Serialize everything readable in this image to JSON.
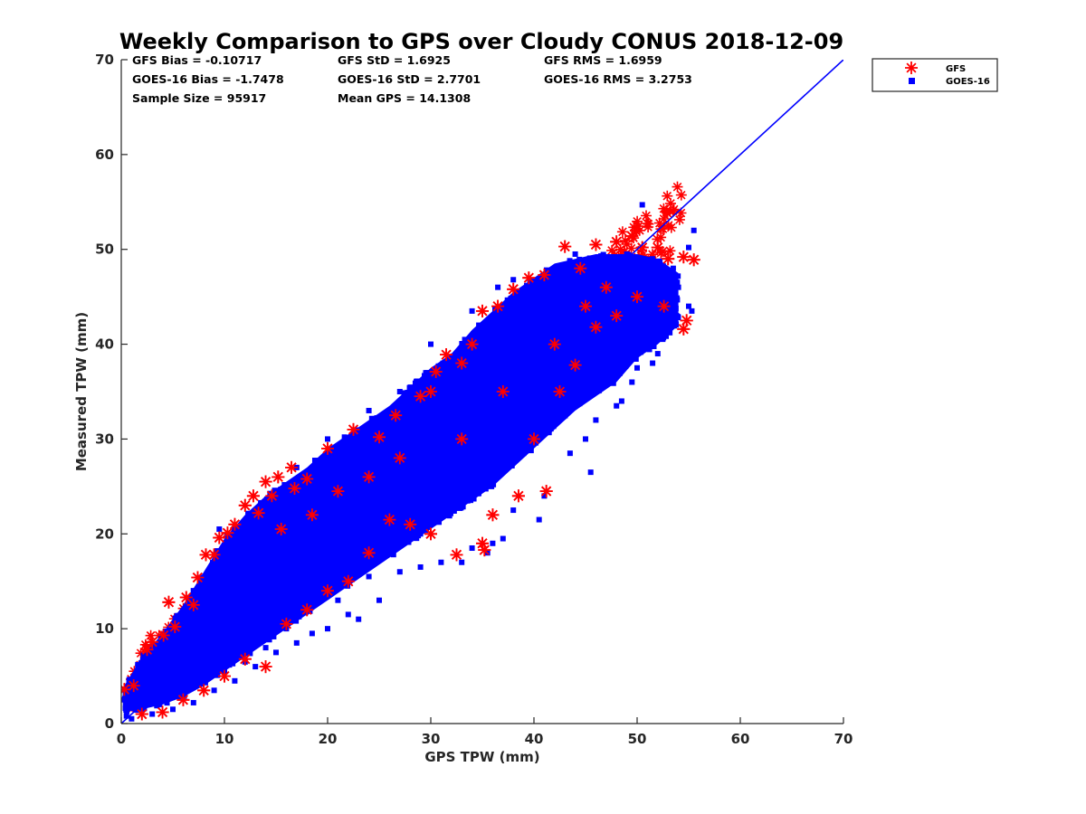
{
  "chart_data": {
    "type": "scatter",
    "title": "Weekly Comparison to GPS over Cloudy CONUS 2018-12-09",
    "xlabel": "GPS TPW (mm)",
    "ylabel": "Measured TPW (mm)",
    "xlim": [
      0,
      70
    ],
    "ylim": [
      0,
      70
    ],
    "x_ticks": [
      "0",
      "10",
      "20",
      "30",
      "40",
      "50",
      "60",
      "70"
    ],
    "y_ticks": [
      "0",
      "10",
      "20",
      "30",
      "40",
      "50",
      "60",
      "70"
    ],
    "grid": false,
    "legend_position": "outside-top-right",
    "stats": [
      "GFS Bias = -0.10717",
      "GFS StD = 1.6925",
      "GFS RMS = 1.6959",
      "GOES-16 Bias = -1.7478",
      "GOES-16 StD = 2.7701",
      "GOES-16 RMS = 3.2753",
      "Sample Size = 95917",
      "Mean GPS = 14.1308"
    ],
    "reference_line": {
      "x": [
        0,
        70
      ],
      "y": [
        0,
        70
      ],
      "color": "#0000ff"
    },
    "series": [
      {
        "name": "GFS",
        "marker": "asterisk",
        "color": "#ff0000",
        "points": [
          [
            0.3,
            3.6
          ],
          [
            1.2,
            4.0
          ],
          [
            2.5,
            7.8
          ],
          [
            3.0,
            8.6
          ],
          [
            4.1,
            9.3
          ],
          [
            4.6,
            12.8
          ],
          [
            5.2,
            10.2
          ],
          [
            6.3,
            13.3
          ],
          [
            7.0,
            12.5
          ],
          [
            7.4,
            15.4
          ],
          [
            8.2,
            17.8
          ],
          [
            9.0,
            17.8
          ],
          [
            9.5,
            19.6
          ],
          [
            10.3,
            20.1
          ],
          [
            11.0,
            21.0
          ],
          [
            12.0,
            23.0
          ],
          [
            12.8,
            24.0
          ],
          [
            13.3,
            22.2
          ],
          [
            14.0,
            25.5
          ],
          [
            14.6,
            24.0
          ],
          [
            15.2,
            26.0
          ],
          [
            16.5,
            27.0
          ],
          [
            16.8,
            24.8
          ],
          [
            18.0,
            25.8
          ],
          [
            20.0,
            29.0
          ],
          [
            22.5,
            31.0
          ],
          [
            25.0,
            30.2
          ],
          [
            26.6,
            32.5
          ],
          [
            29.0,
            34.5
          ],
          [
            30.0,
            35.0
          ],
          [
            30.5,
            37.1
          ],
          [
            31.5,
            38.9
          ],
          [
            33.0,
            38.0
          ],
          [
            34.0,
            40.0
          ],
          [
            35.0,
            43.5
          ],
          [
            36.5,
            44.0
          ],
          [
            38.0,
            45.8
          ],
          [
            39.5,
            47.0
          ],
          [
            41.0,
            47.3
          ],
          [
            43.0,
            50.3
          ],
          [
            44.5,
            48.0
          ],
          [
            46.0,
            50.5
          ],
          [
            48.0,
            50.8
          ],
          [
            49.5,
            51.4
          ],
          [
            50.5,
            50.2
          ],
          [
            52.0,
            50.2
          ],
          [
            53.0,
            49.0
          ],
          [
            54.5,
            49.2
          ],
          [
            55.5,
            48.9
          ],
          [
            54.8,
            42.5
          ],
          [
            54.5,
            41.6
          ],
          [
            52.6,
            44.0
          ],
          [
            50.0,
            45.0
          ],
          [
            48.0,
            43.0
          ],
          [
            46.0,
            41.8
          ],
          [
            44.0,
            37.8
          ],
          [
            42.5,
            35.0
          ],
          [
            40.0,
            30.0
          ],
          [
            41.2,
            24.5
          ],
          [
            38.5,
            24.0
          ],
          [
            36.0,
            22.0
          ],
          [
            35.0,
            19.0
          ],
          [
            35.2,
            18.3
          ],
          [
            32.5,
            17.8
          ],
          [
            30.0,
            20.0
          ],
          [
            28.0,
            21.0
          ],
          [
            26.0,
            21.5
          ],
          [
            24.0,
            18.0
          ],
          [
            22.0,
            15.0
          ],
          [
            20.0,
            14.0
          ],
          [
            18.0,
            12.0
          ],
          [
            16.0,
            10.5
          ],
          [
            14.0,
            6.0
          ],
          [
            12.0,
            6.8
          ],
          [
            10.0,
            5.0
          ],
          [
            8.0,
            3.5
          ],
          [
            6.0,
            2.5
          ],
          [
            4.0,
            1.2
          ],
          [
            2.0,
            1.0
          ],
          [
            15.5,
            20.5
          ],
          [
            18.5,
            22.0
          ],
          [
            21.0,
            24.5
          ],
          [
            24.0,
            26.0
          ],
          [
            27.0,
            28.0
          ],
          [
            33.0,
            30.0
          ],
          [
            37.0,
            35.0
          ],
          [
            42.0,
            40.0
          ],
          [
            45.0,
            44.0
          ],
          [
            47.0,
            46.0
          ]
        ]
      },
      {
        "name": "GOES-16",
        "marker": "square",
        "color": "#0000ff",
        "band": [
          [
            0.3,
            1.2,
            4.0
          ],
          [
            2,
            1.5,
            7.0
          ],
          [
            4,
            2.0,
            9.5
          ],
          [
            6,
            2.8,
            12.5
          ],
          [
            8,
            4.0,
            16.0
          ],
          [
            10,
            5.5,
            19.5
          ],
          [
            12,
            7.0,
            22.0
          ],
          [
            14,
            8.5,
            24.0
          ],
          [
            16,
            10.0,
            25.5
          ],
          [
            18,
            11.5,
            27.0
          ],
          [
            20,
            13.0,
            29.0
          ],
          [
            22,
            14.5,
            30.5
          ],
          [
            24,
            16.0,
            32.0
          ],
          [
            26,
            17.5,
            33.5
          ],
          [
            28,
            19.0,
            35.5
          ],
          [
            30,
            20.5,
            37.5
          ],
          [
            32,
            22.0,
            39.0
          ],
          [
            34,
            23.5,
            41.5
          ],
          [
            36,
            25.0,
            43.5
          ],
          [
            38,
            27.0,
            45.5
          ],
          [
            40,
            29.0,
            47.0
          ],
          [
            42,
            31.0,
            48.5
          ],
          [
            44,
            33.0,
            49.0
          ],
          [
            46,
            34.5,
            49.5
          ],
          [
            48,
            36.0,
            49.5
          ],
          [
            50,
            38.5,
            49.5
          ],
          [
            52,
            40.0,
            49.0
          ],
          [
            54,
            42.0,
            47.5
          ]
        ],
        "outliers": [
          [
            50.5,
            54.7
          ],
          [
            55.5,
            52.0
          ],
          [
            55.0,
            50.2
          ],
          [
            53.5,
            48.0
          ],
          [
            55.0,
            44.0
          ],
          [
            55.3,
            43.5
          ],
          [
            52.0,
            39.0
          ],
          [
            51.5,
            38.0
          ],
          [
            50.0,
            37.5
          ],
          [
            49.5,
            36.0
          ],
          [
            48.5,
            34.0
          ],
          [
            48.0,
            33.5
          ],
          [
            46.0,
            32.0
          ],
          [
            45.0,
            30.0
          ],
          [
            43.5,
            28.5
          ],
          [
            45.5,
            26.5
          ],
          [
            41.0,
            24.0
          ],
          [
            40.5,
            21.5
          ],
          [
            38.0,
            22.5
          ],
          [
            37.0,
            19.5
          ],
          [
            36.0,
            19.0
          ],
          [
            35.5,
            18.0
          ],
          [
            34.0,
            18.5
          ],
          [
            33.0,
            17.0
          ],
          [
            31.0,
            17.0
          ],
          [
            29.0,
            16.5
          ],
          [
            27.0,
            16.0
          ],
          [
            25.0,
            13.0
          ],
          [
            23.0,
            11.0
          ],
          [
            22.0,
            11.5
          ],
          [
            20.0,
            10.0
          ],
          [
            18.5,
            9.5
          ],
          [
            17.0,
            8.5
          ],
          [
            15.0,
            7.5
          ],
          [
            13.0,
            6.0
          ],
          [
            11.0,
            4.5
          ],
          [
            9.0,
            3.5
          ],
          [
            7.0,
            2.2
          ],
          [
            5.0,
            1.5
          ],
          [
            3.0,
            1.0
          ],
          [
            1.0,
            0.5
          ],
          [
            0.5,
            0.8
          ],
          [
            38.0,
            46.8
          ],
          [
            36.5,
            46.0
          ],
          [
            34.0,
            43.5
          ],
          [
            30.0,
            40.0
          ],
          [
            27.0,
            35.0
          ],
          [
            24.0,
            33.0
          ],
          [
            20.0,
            30.0
          ],
          [
            17.0,
            27.0
          ],
          [
            9.5,
            20.5
          ],
          [
            44.0,
            49.5
          ],
          [
            46.5,
            49.3
          ],
          [
            49.0,
            49.5
          ],
          [
            52.5,
            46.5
          ],
          [
            54.0,
            46.0
          ],
          [
            53.0,
            42.0
          ],
          [
            50.5,
            41.5
          ],
          [
            44.0,
            35.0
          ],
          [
            42.0,
            33.0
          ],
          [
            40.0,
            32.0
          ],
          [
            39.0,
            28.5
          ],
          [
            31.0,
            23.0
          ],
          [
            29.0,
            20.0
          ],
          [
            26.0,
            18.0
          ],
          [
            24.0,
            15.5
          ],
          [
            21.0,
            13.0
          ],
          [
            16.0,
            10.0
          ],
          [
            14.0,
            8.0
          ],
          [
            12.0,
            6.5
          ],
          [
            10.0,
            5.5
          ]
        ]
      }
    ]
  }
}
